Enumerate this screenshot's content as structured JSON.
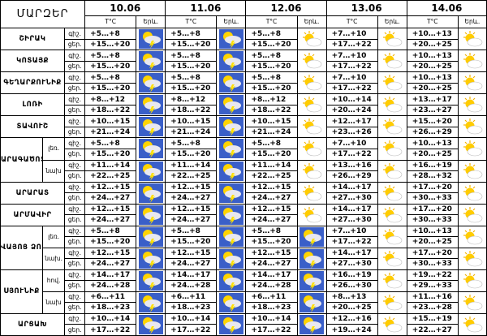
{
  "header": {
    "region_label": "ՄԱՐԶԵՐ",
    "dates": [
      "10.06",
      "11.06",
      "12.06",
      "13.06",
      "14.06"
    ],
    "temp_label": "T°C",
    "city_label": "Երև.",
    "night": "գիշ.",
    "day": "ցեր."
  },
  "regions": [
    {
      "name": "ՇԻՐԱԿ",
      "subs": [
        {
          "days": [
            [
              "+5…+8",
              "+15…+20"
            ],
            [
              "+5…+8",
              "+15…+20"
            ],
            [
              "+5…+8",
              "+15…+20"
            ],
            [
              "+7…+10",
              "+17…+22"
            ],
            [
              "+10…+13",
              "+20…+25"
            ]
          ]
        }
      ]
    },
    {
      "name": "ԿՈՏԱՅՔ",
      "subs": [
        {
          "days": [
            [
              "+5…+8",
              "+15…+20"
            ],
            [
              "+5…+8",
              "+15…+20"
            ],
            [
              "+5…+8",
              "+15…+20"
            ],
            [
              "+7…+10",
              "+17…+22"
            ],
            [
              "+10…+13",
              "+20…+25"
            ]
          ]
        }
      ]
    },
    {
      "name": "ԳԵՂԱՐՔՈՒՆԻՔ",
      "subs": [
        {
          "days": [
            [
              "+5…+8",
              "+15…+20"
            ],
            [
              "+5…+8",
              "+15…+20"
            ],
            [
              "+5…+8",
              "+15…+20"
            ],
            [
              "+7…+10",
              "+17…+22"
            ],
            [
              "+10…+13",
              "+20…+25"
            ]
          ]
        }
      ]
    },
    {
      "name": "ԼՈՌԻ",
      "subs": [
        {
          "days": [
            [
              "+8…+12",
              "+18…+22"
            ],
            [
              "+8…+12",
              "+18…+22"
            ],
            [
              "+8…+12",
              "+18…+22"
            ],
            [
              "+10…+14",
              "+20…+24"
            ],
            [
              "+13…+17",
              "+23…+27"
            ]
          ]
        }
      ]
    },
    {
      "name": "ՏԱՎՈՒՇ",
      "subs": [
        {
          "days": [
            [
              "+10…+15",
              "+21…+24"
            ],
            [
              "+10…+15",
              "+21…+24"
            ],
            [
              "+10…+15",
              "+21…+24"
            ],
            [
              "+12…+17",
              "+23…+26"
            ],
            [
              "+15…+20",
              "+26…+29"
            ]
          ]
        }
      ]
    },
    {
      "name": "ԱՐԱԳԱԾՈՏՆ",
      "subs": [
        {
          "label": "լեռ.",
          "days": [
            [
              "+5…+8",
              "+15…+20"
            ],
            [
              "+5…+8",
              "+15…+20"
            ],
            [
              "+5…+8",
              "+15…+20"
            ],
            [
              "+7…+10",
              "+17…+22"
            ],
            [
              "+10…+13",
              "+20…+25"
            ]
          ]
        },
        {
          "label": "նախ",
          "days": [
            [
              "+11…+14",
              "+22…+25"
            ],
            [
              "+11…+14",
              "+22…+25"
            ],
            [
              "+11…+14",
              "+22…+25"
            ],
            [
              "+13…+16",
              "+26…+29"
            ],
            [
              "+16…+19",
              "+28…+32"
            ]
          ]
        }
      ]
    },
    {
      "name": "ԱՐԱՐԱՏ",
      "subs": [
        {
          "days": [
            [
              "+12…+15",
              "+24…+27"
            ],
            [
              "+12…+15",
              "+24…+27"
            ],
            [
              "+12…+15",
              "+24…+27"
            ],
            [
              "+14…+17",
              "+27…+30"
            ],
            [
              "+17…+20",
              "+30…+33"
            ]
          ]
        }
      ]
    },
    {
      "name": "ԱՐՄԱՎԻՐ",
      "subs": [
        {
          "days": [
            [
              "+12…+15",
              "+24…+27"
            ],
            [
              "+12…+15",
              "+24…+27"
            ],
            [
              "+12…+15",
              "+24…+27"
            ],
            [
              "+14…+17",
              "+27…+30"
            ],
            [
              "+17…+20",
              "+30…+33"
            ]
          ]
        }
      ]
    },
    {
      "name": "ՎԱՅՈՑ ՁՈՐ",
      "subs": [
        {
          "label": "լեռ.",
          "days": [
            [
              "+5…+8",
              "+15…+20"
            ],
            [
              "+5…+8",
              "+15…+20"
            ],
            [
              "+5…+8",
              "+15…+20"
            ],
            [
              "+7…+10",
              "+17…+22"
            ],
            [
              "+10…+13",
              "+20…+25"
            ]
          ]
        },
        {
          "label": "նախ.",
          "days": [
            [
              "+12…+15",
              "+24…+27"
            ],
            [
              "+12…+15",
              "+24…+27"
            ],
            [
              "+12…+15",
              "+24…+27"
            ],
            [
              "+14…+17",
              "+27…+30"
            ],
            [
              "+17…+20",
              "+30…+33"
            ]
          ]
        }
      ]
    },
    {
      "name": "ՍՅՈՒՆԻՔ",
      "subs": [
        {
          "label": "հով.",
          "days": [
            [
              "+14…+17",
              "+24…+28"
            ],
            [
              "+14…+17",
              "+24…+28"
            ],
            [
              "+14…+17",
              "+24…+28"
            ],
            [
              "+16…+19",
              "+26…+30"
            ],
            [
              "+19…+22",
              "+29…+33"
            ]
          ]
        },
        {
          "label": "նախ",
          "days": [
            [
              "+6…+11",
              "+18…+23"
            ],
            [
              "+6…+11",
              "+18…+23"
            ],
            [
              "+6…+11",
              "+18…+23"
            ],
            [
              "+8…+13",
              "+20…+25"
            ],
            [
              "+11…+16",
              "+23…+28"
            ]
          ]
        }
      ]
    },
    {
      "name": "ԱՐՑԱԽ",
      "subs": [
        {
          "days": [
            [
              "+10…+14",
              "+17…+22"
            ],
            [
              "+10…+14",
              "+17…+22"
            ],
            [
              "+10…+14",
              "+17…+22"
            ],
            [
              "+12…+16",
              "+19…+24"
            ],
            [
              "+15…+19",
              "+22…+27"
            ]
          ]
        }
      ]
    }
  ]
}
